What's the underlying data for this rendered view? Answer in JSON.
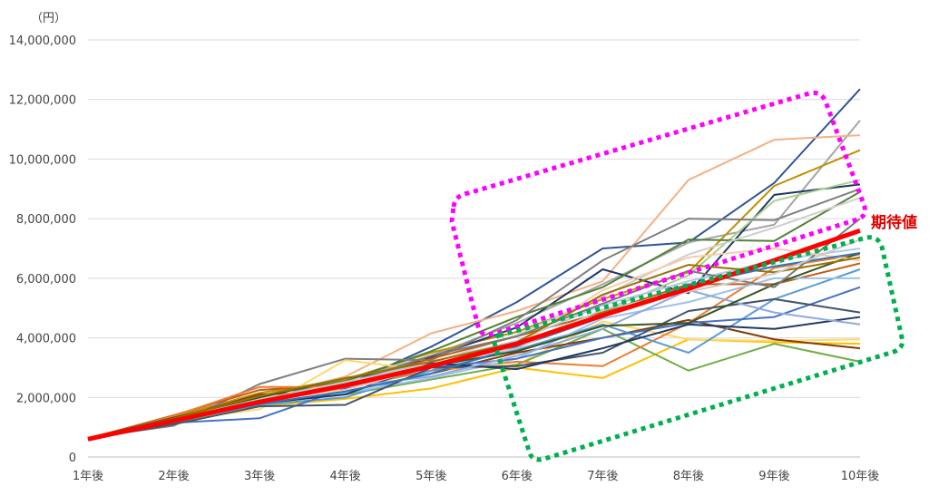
{
  "chart_data": {
    "type": "line",
    "y_unit_label": "（円）",
    "categories": [
      "1年後",
      "2年後",
      "3年後",
      "4年後",
      "5年後",
      "6年後",
      "7年後",
      "8年後",
      "9年後",
      "10年後"
    ],
    "y_ticks": [
      "0",
      "2,000,000",
      "4,000,000",
      "6,000,000",
      "8,000,000",
      "10,000,000",
      "12,000,000",
      "14,000,000"
    ],
    "ylim": [
      0,
      14000000
    ],
    "grid": "horizontal",
    "expected_label": "期待値",
    "expected_series": {
      "color": "#ff0000",
      "values": [
        600000,
        1220000,
        1850000,
        2400000,
        3050000,
        3800000,
        4750000,
        5650000,
        6600000,
        7600000
      ]
    },
    "series": [
      {
        "color": "#2f5597",
        "values": [
          600000,
          1200000,
          1900000,
          2400000,
          3700000,
          5200000,
          7000000,
          7200000,
          9200000,
          12350000
        ]
      },
      {
        "color": "#a5a5a5",
        "values": [
          620000,
          1150000,
          1950000,
          2550000,
          3400000,
          4500000,
          5800000,
          7200000,
          7800000,
          11300000
        ]
      },
      {
        "color": "#f4b183",
        "values": [
          580000,
          1250000,
          2000000,
          2700000,
          4150000,
          4900000,
          5900000,
          9300000,
          10650000,
          10800000
        ]
      },
      {
        "color": "#bf9000",
        "values": [
          640000,
          1350000,
          2150000,
          2600000,
          3500000,
          4200000,
          5300000,
          6200000,
          9100000,
          10300000
        ]
      },
      {
        "color": "#1f3864",
        "values": [
          600000,
          1180000,
          1850000,
          2350000,
          3350000,
          4350000,
          6300000,
          5500000,
          8800000,
          9150000
        ]
      },
      {
        "color": "#a9d18e",
        "values": [
          620000,
          1220000,
          1900000,
          2300000,
          2900000,
          3800000,
          4900000,
          6100000,
          8600000,
          9300000
        ]
      },
      {
        "color": "#548235",
        "values": [
          610000,
          1300000,
          2050000,
          2550000,
          3550000,
          4700000,
          5700000,
          7300000,
          7250000,
          8900000
        ]
      },
      {
        "color": "#d0cece",
        "values": [
          590000,
          1250000,
          1950000,
          2450000,
          3150000,
          4100000,
          5400000,
          6800000,
          7700000,
          8700000
        ]
      },
      {
        "color": "#7f7f7f",
        "values": [
          650000,
          1050000,
          2450000,
          3300000,
          3250000,
          4600000,
          6600000,
          8000000,
          7950000,
          9000000
        ]
      },
      {
        "color": "#ffc000",
        "values": [
          600000,
          1200000,
          1700000,
          1950000,
          2300000,
          3000000,
          2650000,
          3950000,
          3850000,
          3800000
        ]
      },
      {
        "color": "#ffd966",
        "values": [
          590000,
          1230000,
          1600000,
          3250000,
          2900000,
          3100000,
          4550000,
          3950000,
          3900000,
          3950000
        ]
      },
      {
        "color": "#70ad47",
        "values": [
          610000,
          1150000,
          1800000,
          2100000,
          2600000,
          3100000,
          4300000,
          2900000,
          3800000,
          3200000
        ]
      },
      {
        "color": "#843c0c",
        "values": [
          580000,
          1280000,
          2100000,
          2200000,
          2800000,
          3500000,
          4000000,
          4600000,
          3950000,
          3650000
        ]
      },
      {
        "color": "#c55a11",
        "values": [
          620000,
          1400000,
          2250000,
          2450000,
          3300000,
          4050000,
          4850000,
          5800000,
          5800000,
          6500000
        ]
      },
      {
        "color": "#ed7d31",
        "values": [
          570000,
          1380000,
          2350000,
          2350000,
          2900000,
          3200000,
          3050000,
          4500000,
          6350000,
          6800000
        ]
      },
      {
        "color": "#5b9bd5",
        "values": [
          610000,
          1200000,
          1750000,
          2000000,
          2900000,
          3600000,
          4450000,
          3500000,
          5300000,
          6300000
        ]
      },
      {
        "color": "#9dc3e6",
        "values": [
          600000,
          1250000,
          1800000,
          2150000,
          2650000,
          3300000,
          4650000,
          5200000,
          6000000,
          6000000
        ]
      },
      {
        "color": "#4472c4",
        "values": [
          590000,
          1150000,
          1300000,
          2300000,
          3000000,
          3300000,
          4000000,
          4500000,
          4700000,
          5700000
        ]
      },
      {
        "color": "#44546a",
        "values": [
          600000,
          1100000,
          1700000,
          1750000,
          3000000,
          3050000,
          3500000,
          4900000,
          5300000,
          4850000
        ]
      },
      {
        "color": "#203864",
        "values": [
          620000,
          1180000,
          1800000,
          2100000,
          3150000,
          2950000,
          3650000,
          4450000,
          4300000,
          4700000
        ]
      },
      {
        "color": "#8faadc",
        "values": [
          600000,
          1200000,
          1850000,
          2350000,
          2700000,
          3400000,
          4300000,
          5600000,
          4850000,
          4450000
        ]
      },
      {
        "color": "#385723",
        "values": [
          630000,
          1320000,
          2000000,
          2650000,
          3050000,
          3550000,
          4400000,
          4500000,
          5800000,
          6850000
        ]
      },
      {
        "color": "#b4c7e7",
        "values": [
          600000,
          1220000,
          1900000,
          2500000,
          3200000,
          3900000,
          5100000,
          5900000,
          6600000,
          7000000
        ]
      },
      {
        "color": "#7b7b7b",
        "values": [
          610000,
          1260000,
          1850000,
          2450000,
          3400000,
          4050000,
          5150000,
          6250000,
          5700000,
          8000000
        ]
      },
      {
        "color": "#f8cbad",
        "values": [
          590000,
          1210000,
          1900000,
          2250000,
          3050000,
          3750000,
          5600000,
          6700000,
          7000000,
          6600000
        ]
      },
      {
        "color": "#997300",
        "values": [
          620000,
          1290000,
          2050000,
          2650000,
          3200000,
          3850000,
          5450000,
          6450000,
          6200000,
          6700000
        ]
      },
      {
        "color": "#2e75b6",
        "values": [
          600000,
          1190000,
          1780000,
          2200000,
          2800000,
          3700000,
          4700000,
          5750000,
          6400000,
          6850000
        ]
      },
      {
        "color": "#c9c9c9",
        "values": [
          580000,
          1240000,
          1920000,
          2520000,
          3100000,
          3650000,
          4950000,
          5550000,
          6150000,
          7300000
        ]
      }
    ]
  }
}
